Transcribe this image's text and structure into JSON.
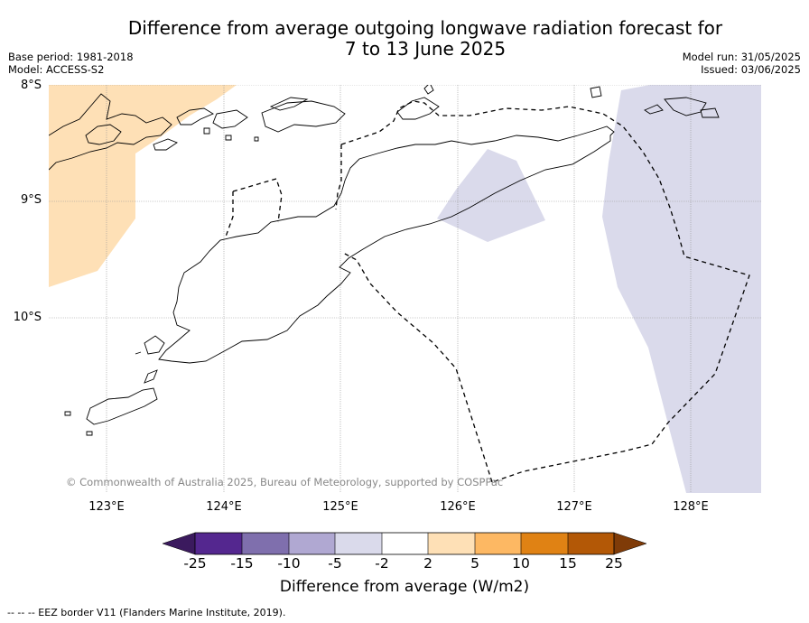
{
  "title_line1": "Difference from average outgoing longwave radiation forecast for",
  "title_line2": "7 to 13 June 2025",
  "meta": {
    "base_period": "Base period: 1981-2018",
    "model": "Model: ACCESS-S2",
    "model_run": "Model run: 31/05/2025",
    "issued": "Issued: 03/06/2025"
  },
  "map": {
    "lat_labels": [
      "8°S",
      "9°S",
      "10°S"
    ],
    "lon_labels": [
      "123°E",
      "124°E",
      "125°E",
      "126°E",
      "127°E",
      "128°E"
    ],
    "copyright": "© Commonwealth of Australia 2025, Bureau of Meteorology, supported by COSPPac",
    "eez_note": "--  --  -- EEZ border V11 (Flanders Marine Institute, 2019).",
    "anomaly_areas": [
      {
        "name": "positive-anomaly-northwest",
        "category": "2 to 5"
      },
      {
        "name": "negative-anomaly-central",
        "category": "-5 to -2"
      },
      {
        "name": "negative-anomaly-east",
        "category": "-5 to -2"
      }
    ]
  },
  "colorbar": {
    "label": "Difference from average (W/m2)",
    "ticks": [
      "-25",
      "-15",
      "-10",
      "-5",
      "-2",
      "2",
      "5",
      "10",
      "15",
      "25"
    ],
    "colors": [
      "#3b1a5e",
      "#54278f",
      "#7f6fad",
      "#b0a8d2",
      "#dadaeb",
      "#ffffff",
      "#fee0b6",
      "#fdb863",
      "#e08214",
      "#b35806",
      "#7f3b08"
    ]
  }
}
